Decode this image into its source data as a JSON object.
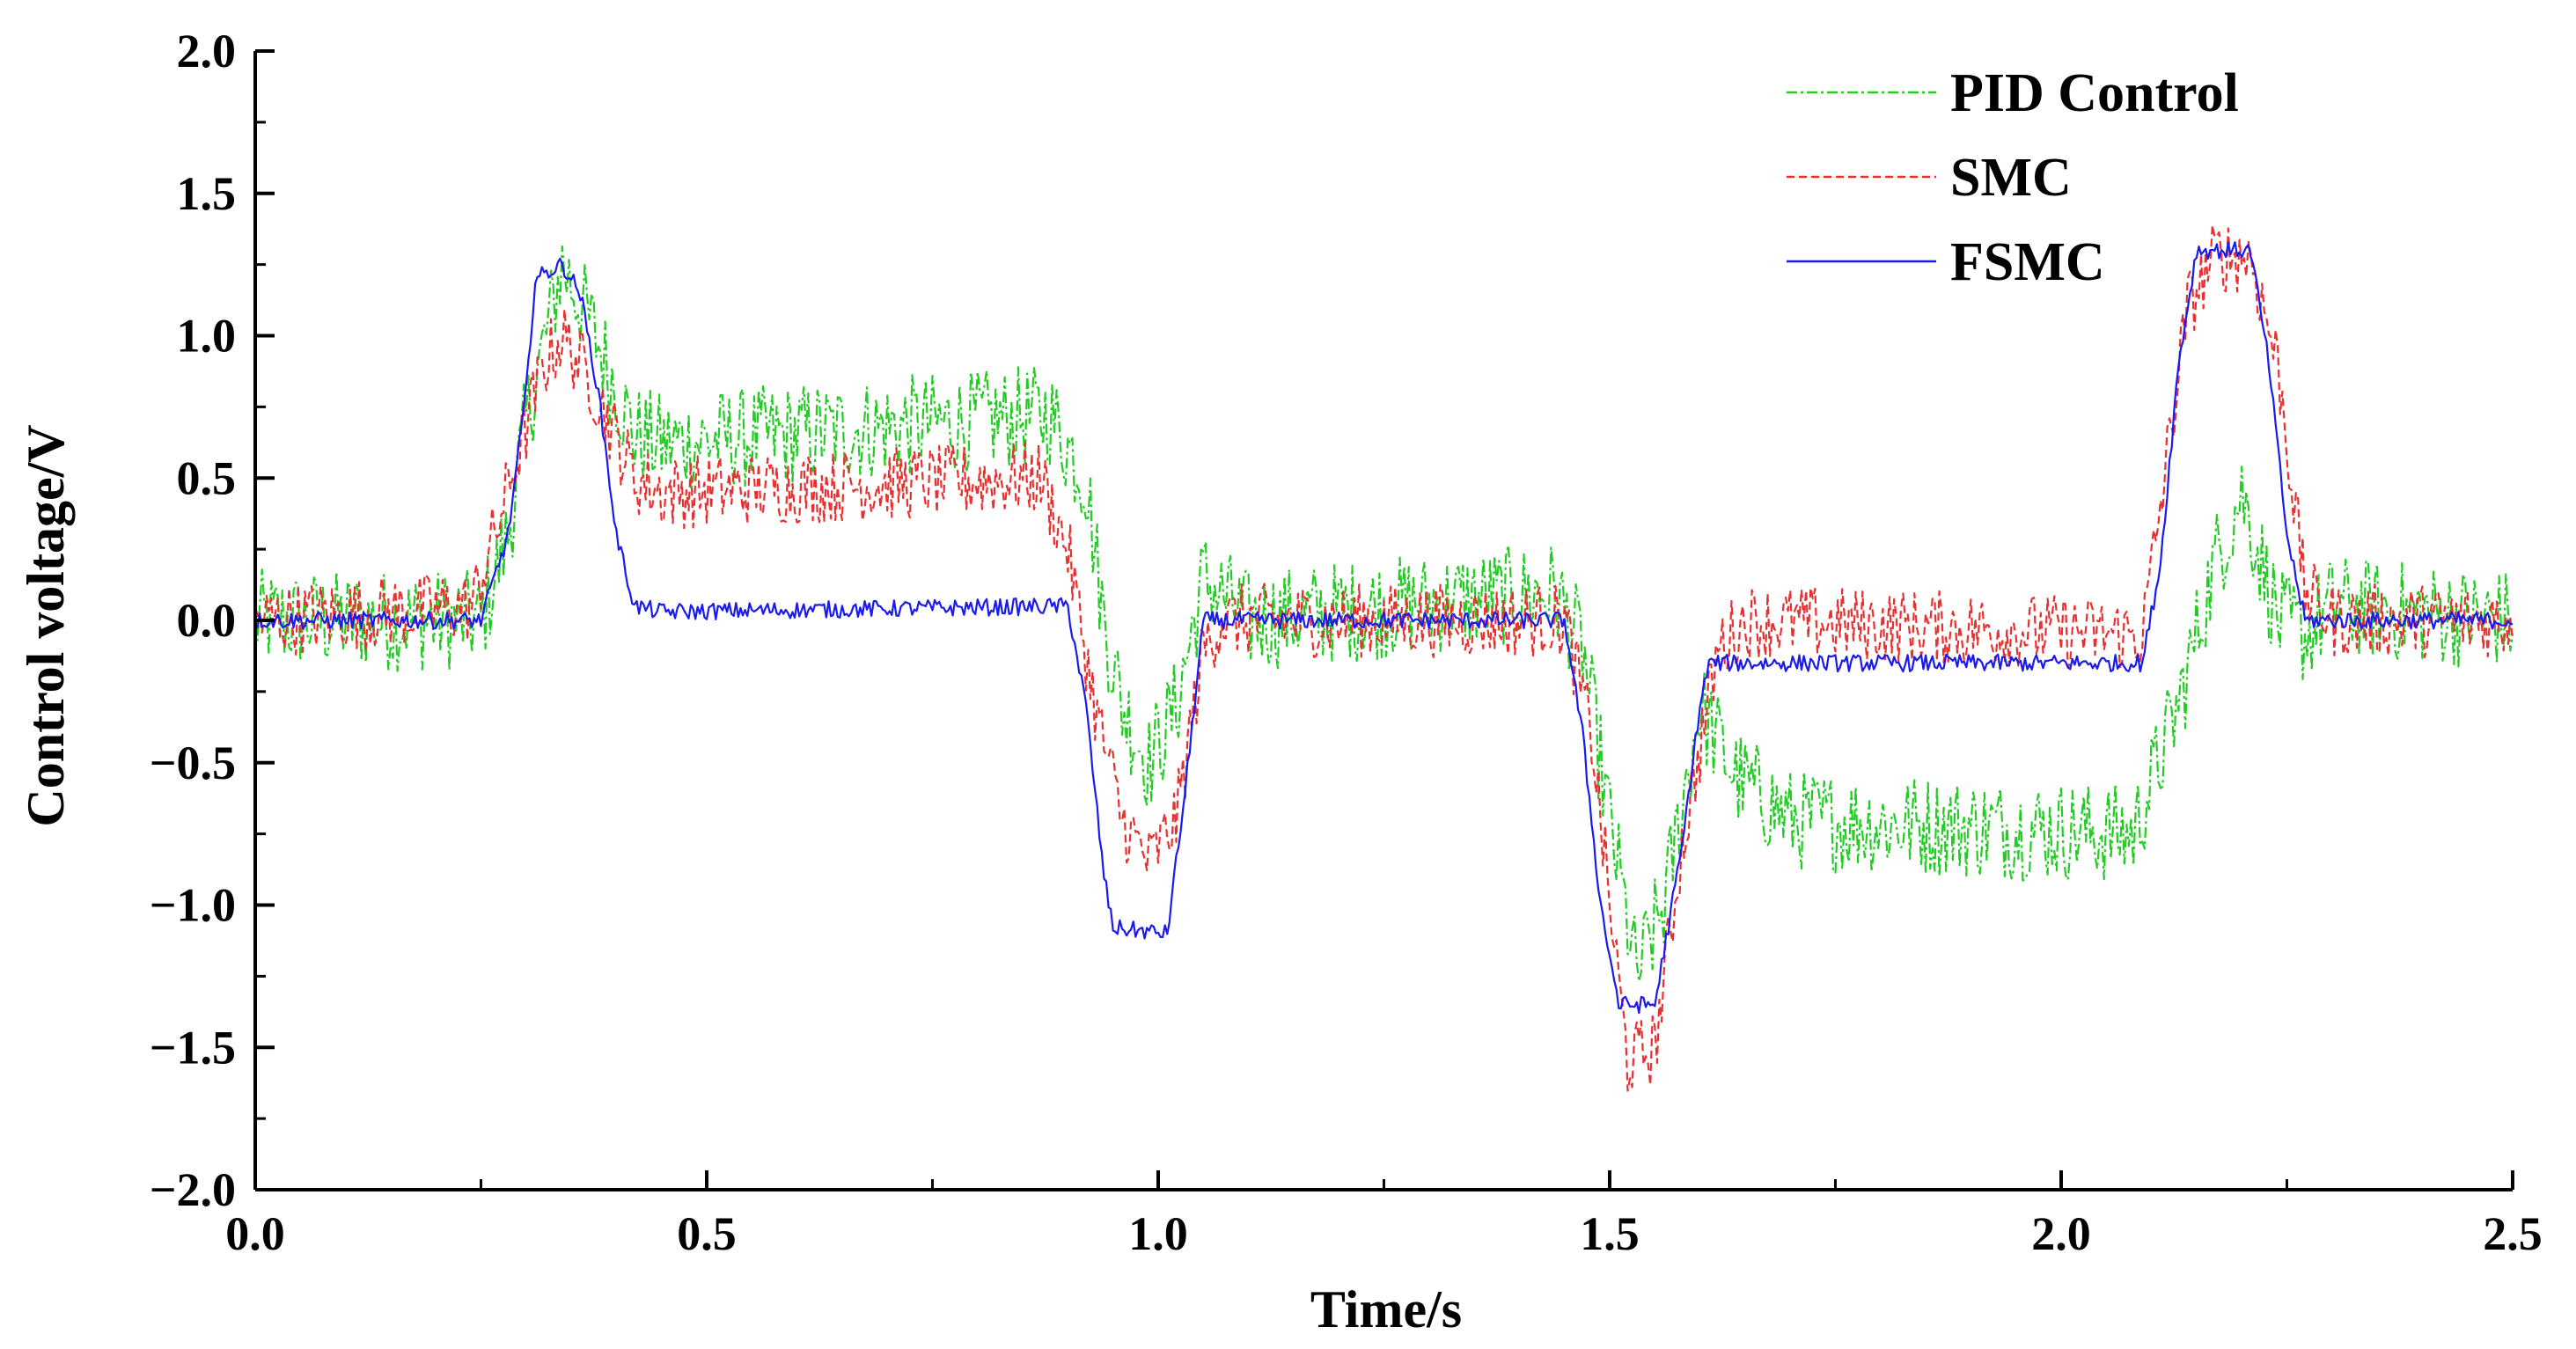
{
  "chart_data": {
    "type": "line",
    "title": "",
    "xlabel": "Time/s",
    "ylabel": "Control voltage/V",
    "xlim": [
      0.0,
      2.5
    ],
    "ylim": [
      -2.0,
      2.0
    ],
    "x_ticks": [
      0.0,
      0.5,
      1.0,
      1.5,
      2.0,
      2.5
    ],
    "x_tick_labels": [
      "0.0",
      "0.5",
      "1.0",
      "1.5",
      "2.0",
      "2.5"
    ],
    "y_ticks": [
      2.0,
      1.5,
      1.0,
      0.5,
      0.0,
      -0.5,
      -1.0,
      -1.5,
      -2.0
    ],
    "y_tick_labels": [
      "2.0",
      "1.5",
      "1.0",
      "0.5",
      "0.0",
      "−0.5",
      "−1.0",
      "−1.5",
      "−2.0"
    ],
    "minor_x_step": 0.25,
    "minor_y_step": 0.25,
    "grid": false,
    "legend_position": "top-right",
    "sample_step": 0.0025,
    "series": [
      {
        "name": "PID Control",
        "color": "#22cc22",
        "dash": "dash-dot",
        "noise": 0.18,
        "points": [
          [
            0.0,
            0.0
          ],
          [
            0.25,
            0.0
          ],
          [
            0.28,
            0.3
          ],
          [
            0.3,
            0.7
          ],
          [
            0.34,
            1.25
          ],
          [
            0.37,
            1.05
          ],
          [
            0.42,
            0.65
          ],
          [
            0.45,
            0.62
          ],
          [
            0.88,
            0.72
          ],
          [
            0.92,
            0.5
          ],
          [
            0.94,
            0.0
          ],
          [
            0.96,
            -0.3
          ],
          [
            0.99,
            -0.5
          ],
          [
            1.02,
            -0.3
          ],
          [
            1.05,
            0.15
          ],
          [
            1.1,
            0.0
          ],
          [
            1.44,
            0.1
          ],
          [
            1.47,
            -0.1
          ],
          [
            1.5,
            -0.7
          ],
          [
            1.53,
            -1.25
          ],
          [
            1.56,
            -1.0
          ],
          [
            1.6,
            -0.3
          ],
          [
            1.64,
            -0.55
          ],
          [
            1.7,
            -0.7
          ],
          [
            2.08,
            -0.75
          ],
          [
            2.13,
            -0.3
          ],
          [
            2.17,
            0.2
          ],
          [
            2.2,
            0.45
          ],
          [
            2.24,
            0.0
          ],
          [
            2.27,
            -0.05
          ],
          [
            2.3,
            0.05
          ],
          [
            2.5,
            0.0
          ]
        ]
      },
      {
        "name": "SMC",
        "color": "#e83030",
        "dash": "dashed",
        "noise": 0.13,
        "points": [
          [
            0.0,
            0.0
          ],
          [
            0.24,
            0.05
          ],
          [
            0.27,
            0.35
          ],
          [
            0.32,
            0.9
          ],
          [
            0.34,
            1.0
          ],
          [
            0.37,
            0.85
          ],
          [
            0.42,
            0.5
          ],
          [
            0.45,
            0.45
          ],
          [
            0.87,
            0.5
          ],
          [
            0.9,
            0.25
          ],
          [
            0.93,
            -0.3
          ],
          [
            0.96,
            -0.7
          ],
          [
            0.99,
            -0.85
          ],
          [
            1.02,
            -0.7
          ],
          [
            1.05,
            -0.1
          ],
          [
            1.07,
            0.0
          ],
          [
            1.45,
            0.0
          ],
          [
            1.48,
            -0.4
          ],
          [
            1.5,
            -1.0
          ],
          [
            1.52,
            -1.55
          ],
          [
            1.55,
            -1.5
          ],
          [
            1.58,
            -0.8
          ],
          [
            1.62,
            -0.1
          ],
          [
            1.65,
            0.0
          ],
          [
            2.09,
            -0.05
          ],
          [
            2.11,
            0.4
          ],
          [
            2.14,
            1.1
          ],
          [
            2.17,
            1.28
          ],
          [
            2.21,
            1.28
          ],
          [
            2.24,
            0.9
          ],
          [
            2.27,
            0.1
          ],
          [
            2.3,
            0.0
          ],
          [
            2.5,
            0.0
          ]
        ]
      },
      {
        "name": "FSMC",
        "color": "#1a1aee",
        "dash": "solid",
        "noise": 0.03,
        "points": [
          [
            0.0,
            0.0
          ],
          [
            0.25,
            0.0
          ],
          [
            0.28,
            0.3
          ],
          [
            0.3,
            0.8
          ],
          [
            0.31,
            1.2
          ],
          [
            0.34,
            1.25
          ],
          [
            0.36,
            1.15
          ],
          [
            0.38,
            0.8
          ],
          [
            0.4,
            0.3
          ],
          [
            0.42,
            0.05
          ],
          [
            0.45,
            0.03
          ],
          [
            0.9,
            0.05
          ],
          [
            0.92,
            -0.3
          ],
          [
            0.94,
            -0.9
          ],
          [
            0.95,
            -1.08
          ],
          [
            1.01,
            -1.1
          ],
          [
            1.03,
            -0.6
          ],
          [
            1.05,
            0.0
          ],
          [
            1.45,
            0.0
          ],
          [
            1.47,
            -0.4
          ],
          [
            1.49,
            -1.0
          ],
          [
            1.51,
            -1.35
          ],
          [
            1.55,
            -1.35
          ],
          [
            1.58,
            -0.8
          ],
          [
            1.6,
            -0.3
          ],
          [
            1.61,
            -0.15
          ],
          [
            2.09,
            -0.15
          ],
          [
            2.11,
            0.2
          ],
          [
            2.13,
            0.9
          ],
          [
            2.15,
            1.3
          ],
          [
            2.21,
            1.3
          ],
          [
            2.23,
            0.9
          ],
          [
            2.25,
            0.3
          ],
          [
            2.27,
            0.0
          ],
          [
            2.5,
            0.0
          ]
        ]
      }
    ]
  }
}
